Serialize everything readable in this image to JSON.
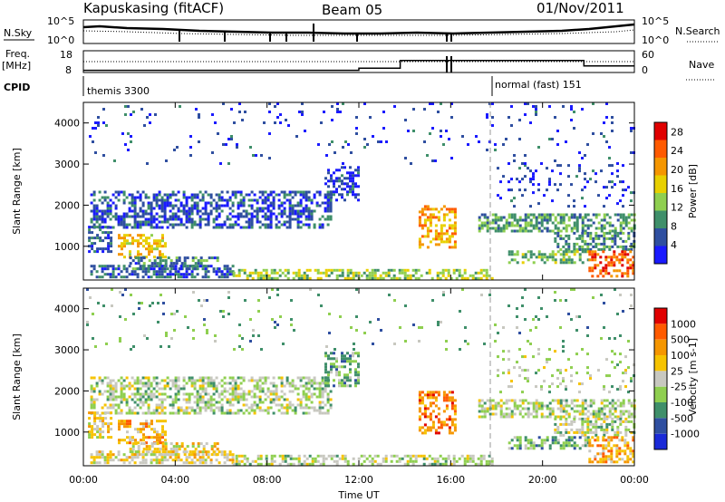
{
  "header": {
    "station": "Kapuskasing (fitACF)",
    "beam": "Beam 05",
    "date": "01/Nov/2011"
  },
  "strips": {
    "nsky_label": "N.Sky",
    "nsearch_label": "N.Search",
    "freq_label": "Freq.",
    "freq_unit": "[MHz]",
    "nave_label": "Nave",
    "cpid_label": "CPID",
    "nsky_ticks": [
      "10^5",
      "10^0"
    ],
    "nsearch_ticks": [
      "10^5",
      "10^0"
    ],
    "freq_ticks": [
      "18",
      "8"
    ],
    "nave_ticks": [
      "60",
      "0"
    ],
    "cpid_segments": [
      {
        "name": "themis 3300",
        "start_hour": 0
      },
      {
        "name": "normal (fast) 151",
        "start_hour": 18
      }
    ],
    "freq_steps": [
      {
        "start_hour": 0,
        "value": 9
      },
      {
        "start_hour": 12,
        "value": 10
      },
      {
        "start_hour": 13.8,
        "value": 13.5
      },
      {
        "start_hour": 21.8,
        "value": 11
      }
    ],
    "nave_level": 30
  },
  "chart_data": [
    {
      "type": "heatmap",
      "panel": "power",
      "xlabel": "",
      "ylabel": "Slant Range [km]",
      "x_ticks": [
        "00:00",
        "04:00",
        "08:00",
        "12:00",
        "16:00",
        "20:00",
        "00:00"
      ],
      "xlim_hours": [
        0,
        24
      ],
      "y_ticks": [
        "1000",
        "2000",
        "3000",
        "4000"
      ],
      "ylim_km": [
        180,
        4500
      ],
      "colorbar_label": "Power [dB]",
      "colorbar_ticks": [
        "4",
        "8",
        "12",
        "16",
        "20",
        "24",
        "28"
      ],
      "colorbar_colors": [
        "#1a1aff",
        "#2f4fa0",
        "#3f8f6a",
        "#8fcf50",
        "#e8d000",
        "#f59600",
        "#ff5a00",
        "#e00000"
      ],
      "colorbar_range": [
        0,
        30
      ],
      "markers_hours": [
        18
      ],
      "regions": [
        {
          "t0": 0.3,
          "t1": 10.8,
          "r0": 1480,
          "r1": 2350,
          "value": 5
        },
        {
          "t0": 10.5,
          "t1": 12.0,
          "r0": 2100,
          "r1": 2950,
          "value": 4
        },
        {
          "t0": 0.2,
          "t1": 1.2,
          "r0": 900,
          "r1": 1500,
          "value": 6
        },
        {
          "t0": 1.5,
          "t1": 3.6,
          "r0": 750,
          "r1": 1300,
          "value": 18
        },
        {
          "t0": 2.0,
          "t1": 5.8,
          "r0": 450,
          "r1": 750,
          "value": 8
        },
        {
          "t0": 0.3,
          "t1": 6.5,
          "r0": 250,
          "r1": 550,
          "value": 6
        },
        {
          "t0": 6.5,
          "t1": 17.8,
          "r0": 250,
          "r1": 450,
          "value": 14
        },
        {
          "t0": 14.6,
          "t1": 16.2,
          "r0": 950,
          "r1": 2000,
          "value": 20
        },
        {
          "t0": 17.2,
          "t1": 24.0,
          "r0": 1400,
          "r1": 1800,
          "value": 10
        },
        {
          "t0": 20.5,
          "t1": 24.0,
          "r0": 950,
          "r1": 1350,
          "value": 9
        },
        {
          "t0": 18.5,
          "t1": 22.0,
          "r0": 600,
          "r1": 900,
          "value": 12
        },
        {
          "t0": 22.0,
          "t1": 24.0,
          "r0": 300,
          "r1": 900,
          "value": 24
        },
        {
          "t0": 18.0,
          "t1": 24.0,
          "r0": 2000,
          "r1": 3000,
          "value": 4
        },
        {
          "t0": 0.0,
          "t1": 24.0,
          "r0": 3000,
          "r1": 4500,
          "value": 4
        }
      ]
    },
    {
      "type": "heatmap",
      "panel": "velocity",
      "xlabel": "Time UT",
      "ylabel": "Slant Range [km]",
      "x_ticks": [
        "00:00",
        "04:00",
        "08:00",
        "12:00",
        "16:00",
        "20:00",
        "00:00"
      ],
      "xlim_hours": [
        0,
        24
      ],
      "y_ticks": [
        "1000",
        "2000",
        "3000",
        "4000"
      ],
      "ylim_km": [
        180,
        4500
      ],
      "colorbar_label": "Velocity [m s-1]",
      "colorbar_ticks": [
        "1000",
        "500",
        "100",
        "25",
        "-25",
        "-100",
        "-500",
        "-1000"
      ],
      "colorbar_colors": [
        "#1a2ad8",
        "#2f4fa0",
        "#3f8f6a",
        "#8fcf50",
        "#c8c8c0",
        "#f6c300",
        "#f59600",
        "#ff5a00",
        "#e00000"
      ],
      "colorbar_range": [
        0,
        9
      ],
      "markers_hours": [
        18
      ],
      "regions": [
        {
          "t0": 0.3,
          "t1": 10.8,
          "r0": 1480,
          "r1": 2350,
          "value": 4
        },
        {
          "t0": 10.5,
          "t1": 12.0,
          "r0": 2100,
          "r1": 2950,
          "value": 3
        },
        {
          "t0": 0.2,
          "t1": 1.2,
          "r0": 900,
          "r1": 1500,
          "value": 5
        },
        {
          "t0": 1.5,
          "t1": 3.6,
          "r0": 750,
          "r1": 1300,
          "value": 6
        },
        {
          "t0": 2.0,
          "t1": 5.8,
          "r0": 450,
          "r1": 750,
          "value": 5
        },
        {
          "t0": 0.3,
          "t1": 6.5,
          "r0": 250,
          "r1": 550,
          "value": 5
        },
        {
          "t0": 6.5,
          "t1": 17.8,
          "r0": 250,
          "r1": 450,
          "value": 4
        },
        {
          "t0": 14.6,
          "t1": 16.2,
          "r0": 950,
          "r1": 2000,
          "value": 7
        },
        {
          "t0": 17.2,
          "t1": 24.0,
          "r0": 1400,
          "r1": 1800,
          "value": 4
        },
        {
          "t0": 20.5,
          "t1": 24.0,
          "r0": 950,
          "r1": 1350,
          "value": 4
        },
        {
          "t0": 18.5,
          "t1": 22.0,
          "r0": 600,
          "r1": 900,
          "value": 3
        },
        {
          "t0": 22.0,
          "t1": 24.0,
          "r0": 300,
          "r1": 900,
          "value": 6
        },
        {
          "t0": 18.0,
          "t1": 24.0,
          "r0": 2000,
          "r1": 3000,
          "value": 4
        },
        {
          "t0": 0.0,
          "t1": 24.0,
          "r0": 3000,
          "r1": 4500,
          "value": 3
        }
      ]
    }
  ]
}
